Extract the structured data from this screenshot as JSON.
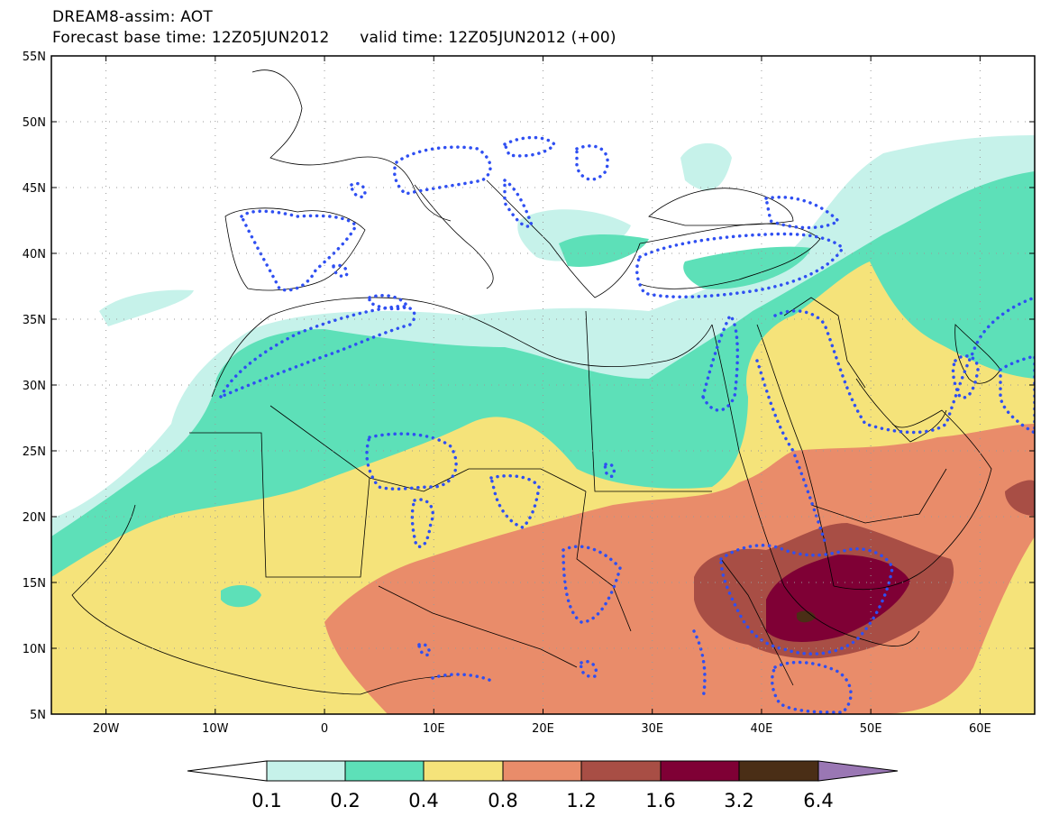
{
  "header": {
    "title_line1": "DREAM8-assim: AOT",
    "base_time_label": "Forecast base time: 12Z05JUN2012",
    "valid_time_label": "valid time: 12Z05JUN2012 (+00)"
  },
  "map": {
    "lon_range": [
      -25,
      65
    ],
    "lat_range": [
      5,
      55
    ],
    "lat_ticks": [
      {
        "value": 55,
        "label": "55N"
      },
      {
        "value": 50,
        "label": "50N"
      },
      {
        "value": 45,
        "label": "45N"
      },
      {
        "value": 40,
        "label": "40N"
      },
      {
        "value": 35,
        "label": "35N"
      },
      {
        "value": 30,
        "label": "30N"
      },
      {
        "value": 25,
        "label": "25N"
      },
      {
        "value": 20,
        "label": "20N"
      },
      {
        "value": 15,
        "label": "15N"
      },
      {
        "value": 10,
        "label": "10N"
      },
      {
        "value": 5,
        "label": "5N"
      }
    ],
    "lon_ticks": [
      {
        "value": -20,
        "label": "20W"
      },
      {
        "value": -10,
        "label": "10W"
      },
      {
        "value": 0,
        "label": "0"
      },
      {
        "value": 10,
        "label": "10E"
      },
      {
        "value": 20,
        "label": "20E"
      },
      {
        "value": 30,
        "label": "30E"
      },
      {
        "value": 40,
        "label": "40E"
      },
      {
        "value": 50,
        "label": "50E"
      },
      {
        "value": 60,
        "label": "60E"
      }
    ],
    "grid": "dotted"
  },
  "colorbar": {
    "levels": [
      "0.1",
      "0.2",
      "0.4",
      "0.8",
      "1.2",
      "1.6",
      "3.2",
      "6.4"
    ],
    "colors": {
      "below": "#ffffff",
      "c1": "#c6f2ea",
      "c2": "#5de0b8",
      "c3": "#f5e37a",
      "c4": "#e98c6a",
      "c5": "#a84e45",
      "c6": "#7f0035",
      "c7": "#4a2e16",
      "above": "#9a77b4"
    }
  },
  "overlay": {
    "contour_color": "#2f4ff2"
  }
}
